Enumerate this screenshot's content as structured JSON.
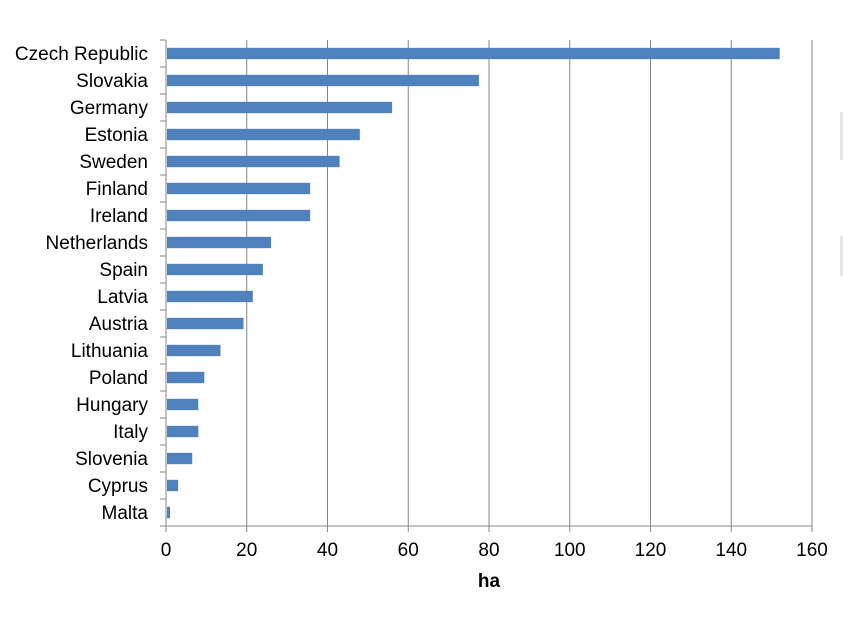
{
  "chart_data": {
    "type": "bar",
    "orientation": "horizontal",
    "categories": [
      "Czech Republic",
      "Slovakia",
      "Germany",
      "Estonia",
      "Sweden",
      "Finland",
      "Ireland",
      "Netherlands",
      "Spain",
      "Latvia",
      "Austria",
      "Lithuania",
      "Poland",
      "Hungary",
      "Italy",
      "Slovenia",
      "Cyprus",
      "Malta"
    ],
    "values": [
      152,
      77.5,
      56,
      48,
      43,
      35.7,
      35.7,
      26,
      24,
      21.5,
      19.2,
      13.5,
      9.5,
      8,
      8,
      6.5,
      3,
      1
    ],
    "xlabel": "ha",
    "xlim": [
      0,
      160
    ],
    "xticks": [
      "0",
      "20",
      "40",
      "60",
      "80",
      "100",
      "120",
      "140",
      "160"
    ],
    "grid": "vertical",
    "bar_color": "#4f81bd"
  }
}
